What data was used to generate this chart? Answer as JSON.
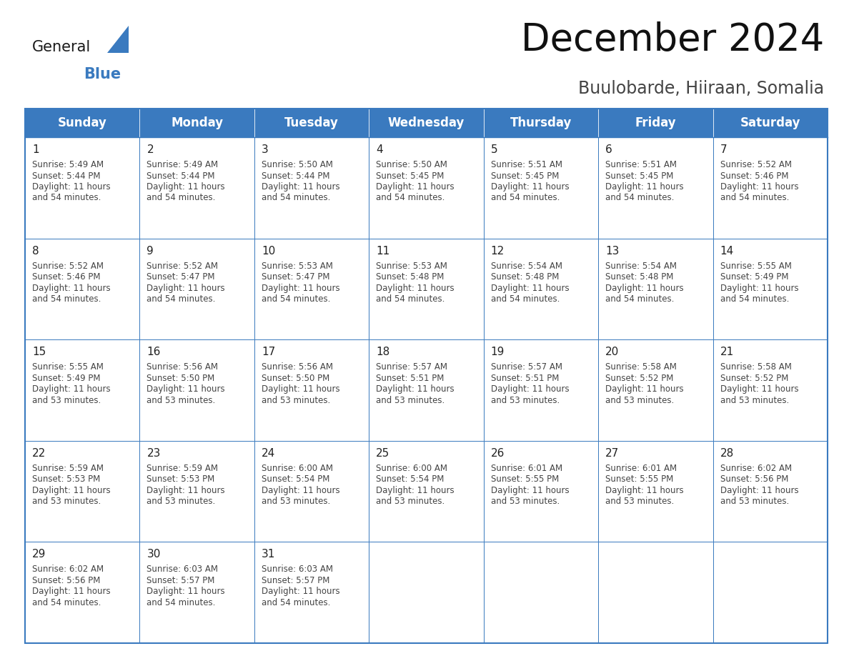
{
  "title": "December 2024",
  "subtitle": "Buulobarde, Hiiraan, Somalia",
  "header_color": "#3a7abf",
  "header_text_color": "#ffffff",
  "border_color": "#3a7abf",
  "day_number_color": "#222222",
  "cell_text_color": "#444444",
  "alt_row_color": "#f0f4f8",
  "days_of_week": [
    "Sunday",
    "Monday",
    "Tuesday",
    "Wednesday",
    "Thursday",
    "Friday",
    "Saturday"
  ],
  "weeks": [
    [
      {
        "day": 1,
        "sunrise": "5:49 AM",
        "sunset": "5:44 PM",
        "dl1": "Daylight: 11 hours",
        "dl2": "and 54 minutes."
      },
      {
        "day": 2,
        "sunrise": "5:49 AM",
        "sunset": "5:44 PM",
        "dl1": "Daylight: 11 hours",
        "dl2": "and 54 minutes."
      },
      {
        "day": 3,
        "sunrise": "5:50 AM",
        "sunset": "5:44 PM",
        "dl1": "Daylight: 11 hours",
        "dl2": "and 54 minutes."
      },
      {
        "day": 4,
        "sunrise": "5:50 AM",
        "sunset": "5:45 PM",
        "dl1": "Daylight: 11 hours",
        "dl2": "and 54 minutes."
      },
      {
        "day": 5,
        "sunrise": "5:51 AM",
        "sunset": "5:45 PM",
        "dl1": "Daylight: 11 hours",
        "dl2": "and 54 minutes."
      },
      {
        "day": 6,
        "sunrise": "5:51 AM",
        "sunset": "5:45 PM",
        "dl1": "Daylight: 11 hours",
        "dl2": "and 54 minutes."
      },
      {
        "day": 7,
        "sunrise": "5:52 AM",
        "sunset": "5:46 PM",
        "dl1": "Daylight: 11 hours",
        "dl2": "and 54 minutes."
      }
    ],
    [
      {
        "day": 8,
        "sunrise": "5:52 AM",
        "sunset": "5:46 PM",
        "dl1": "Daylight: 11 hours",
        "dl2": "and 54 minutes."
      },
      {
        "day": 9,
        "sunrise": "5:52 AM",
        "sunset": "5:47 PM",
        "dl1": "Daylight: 11 hours",
        "dl2": "and 54 minutes."
      },
      {
        "day": 10,
        "sunrise": "5:53 AM",
        "sunset": "5:47 PM",
        "dl1": "Daylight: 11 hours",
        "dl2": "and 54 minutes."
      },
      {
        "day": 11,
        "sunrise": "5:53 AM",
        "sunset": "5:48 PM",
        "dl1": "Daylight: 11 hours",
        "dl2": "and 54 minutes."
      },
      {
        "day": 12,
        "sunrise": "5:54 AM",
        "sunset": "5:48 PM",
        "dl1": "Daylight: 11 hours",
        "dl2": "and 54 minutes."
      },
      {
        "day": 13,
        "sunrise": "5:54 AM",
        "sunset": "5:48 PM",
        "dl1": "Daylight: 11 hours",
        "dl2": "and 54 minutes."
      },
      {
        "day": 14,
        "sunrise": "5:55 AM",
        "sunset": "5:49 PM",
        "dl1": "Daylight: 11 hours",
        "dl2": "and 54 minutes."
      }
    ],
    [
      {
        "day": 15,
        "sunrise": "5:55 AM",
        "sunset": "5:49 PM",
        "dl1": "Daylight: 11 hours",
        "dl2": "and 53 minutes."
      },
      {
        "day": 16,
        "sunrise": "5:56 AM",
        "sunset": "5:50 PM",
        "dl1": "Daylight: 11 hours",
        "dl2": "and 53 minutes."
      },
      {
        "day": 17,
        "sunrise": "5:56 AM",
        "sunset": "5:50 PM",
        "dl1": "Daylight: 11 hours",
        "dl2": "and 53 minutes."
      },
      {
        "day": 18,
        "sunrise": "5:57 AM",
        "sunset": "5:51 PM",
        "dl1": "Daylight: 11 hours",
        "dl2": "and 53 minutes."
      },
      {
        "day": 19,
        "sunrise": "5:57 AM",
        "sunset": "5:51 PM",
        "dl1": "Daylight: 11 hours",
        "dl2": "and 53 minutes."
      },
      {
        "day": 20,
        "sunrise": "5:58 AM",
        "sunset": "5:52 PM",
        "dl1": "Daylight: 11 hours",
        "dl2": "and 53 minutes."
      },
      {
        "day": 21,
        "sunrise": "5:58 AM",
        "sunset": "5:52 PM",
        "dl1": "Daylight: 11 hours",
        "dl2": "and 53 minutes."
      }
    ],
    [
      {
        "day": 22,
        "sunrise": "5:59 AM",
        "sunset": "5:53 PM",
        "dl1": "Daylight: 11 hours",
        "dl2": "and 53 minutes."
      },
      {
        "day": 23,
        "sunrise": "5:59 AM",
        "sunset": "5:53 PM",
        "dl1": "Daylight: 11 hours",
        "dl2": "and 53 minutes."
      },
      {
        "day": 24,
        "sunrise": "6:00 AM",
        "sunset": "5:54 PM",
        "dl1": "Daylight: 11 hours",
        "dl2": "and 53 minutes."
      },
      {
        "day": 25,
        "sunrise": "6:00 AM",
        "sunset": "5:54 PM",
        "dl1": "Daylight: 11 hours",
        "dl2": "and 53 minutes."
      },
      {
        "day": 26,
        "sunrise": "6:01 AM",
        "sunset": "5:55 PM",
        "dl1": "Daylight: 11 hours",
        "dl2": "and 53 minutes."
      },
      {
        "day": 27,
        "sunrise": "6:01 AM",
        "sunset": "5:55 PM",
        "dl1": "Daylight: 11 hours",
        "dl2": "and 53 minutes."
      },
      {
        "day": 28,
        "sunrise": "6:02 AM",
        "sunset": "5:56 PM",
        "dl1": "Daylight: 11 hours",
        "dl2": "and 53 minutes."
      }
    ],
    [
      {
        "day": 29,
        "sunrise": "6:02 AM",
        "sunset": "5:56 PM",
        "dl1": "Daylight: 11 hours",
        "dl2": "and 54 minutes."
      },
      {
        "day": 30,
        "sunrise": "6:03 AM",
        "sunset": "5:57 PM",
        "dl1": "Daylight: 11 hours",
        "dl2": "and 54 minutes."
      },
      {
        "day": 31,
        "sunrise": "6:03 AM",
        "sunset": "5:57 PM",
        "dl1": "Daylight: 11 hours",
        "dl2": "and 54 minutes."
      },
      null,
      null,
      null,
      null
    ]
  ],
  "logo_general_color": "#1a1a1a",
  "logo_blue_color": "#3a7abf",
  "title_fontsize": 38,
  "subtitle_fontsize": 17,
  "header_fontsize": 12,
  "day_number_fontsize": 11,
  "cell_text_fontsize": 8.5
}
